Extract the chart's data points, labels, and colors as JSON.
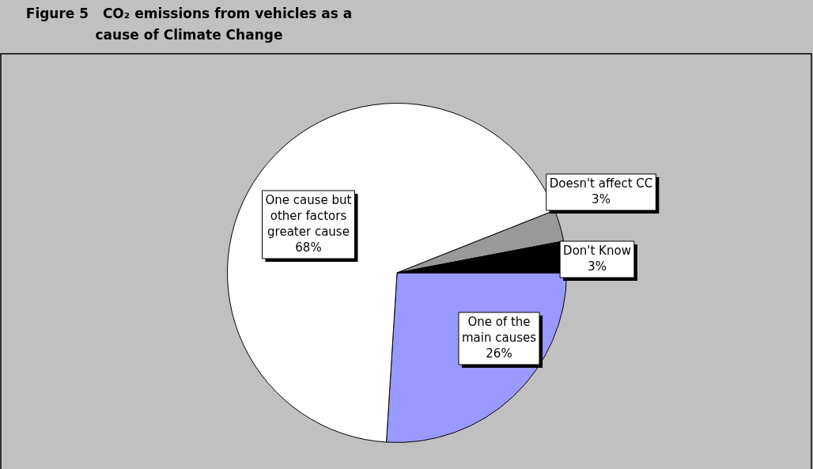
{
  "chart_data": {
    "type": "pie",
    "title": "Figure 5   CO₂ emissions from vehicles as a cause of Climate Change",
    "categories": [
      "One of the main causes",
      "One cause but other factors greater cause",
      "Doesn't affect CC",
      "Don't Know"
    ],
    "values": [
      26,
      68,
      3,
      3
    ],
    "colors": [
      "#9999ff",
      "#ffffff",
      "#999999",
      "#000000"
    ],
    "value_labels": [
      "26%",
      "68%",
      "3%",
      "3%"
    ],
    "legend": false
  }
}
